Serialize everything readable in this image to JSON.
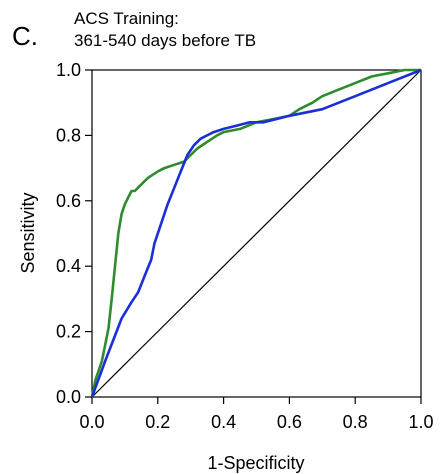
{
  "panel_label": "C.",
  "title_line1": "ACS Training:",
  "title_line2": "361-540 days before TB",
  "chart_data": {
    "type": "line",
    "xlabel": "1-Specificity",
    "ylabel": "Sensitivity",
    "xlim": [
      0.0,
      1.0
    ],
    "ylim": [
      0.0,
      1.0
    ],
    "x_ticks": [
      "0.0",
      "0.2",
      "0.4",
      "0.6",
      "0.8",
      "1.0"
    ],
    "y_ticks": [
      "0.0",
      "0.2",
      "0.4",
      "0.6",
      "0.8",
      "1.0"
    ],
    "grid": false,
    "series": [
      {
        "color": "#2e8b2e",
        "x": [
          0.0,
          0.01,
          0.02,
          0.03,
          0.04,
          0.05,
          0.06,
          0.07,
          0.08,
          0.09,
          0.1,
          0.11,
          0.12,
          0.13,
          0.14,
          0.15,
          0.17,
          0.2,
          0.22,
          0.25,
          0.28,
          0.3,
          0.32,
          0.35,
          0.38,
          0.4,
          0.45,
          0.5,
          0.55,
          0.6,
          0.63,
          0.67,
          0.7,
          0.75,
          0.8,
          0.85,
          0.9,
          0.95,
          1.0
        ],
        "y": [
          0.0,
          0.05,
          0.08,
          0.11,
          0.16,
          0.21,
          0.3,
          0.4,
          0.5,
          0.56,
          0.59,
          0.61,
          0.63,
          0.63,
          0.64,
          0.65,
          0.67,
          0.69,
          0.7,
          0.71,
          0.72,
          0.74,
          0.76,
          0.78,
          0.8,
          0.81,
          0.82,
          0.84,
          0.85,
          0.86,
          0.88,
          0.9,
          0.92,
          0.94,
          0.96,
          0.98,
          0.99,
          1.0,
          1.0
        ]
      },
      {
        "color": "#1a2fd6",
        "x": [
          0.0,
          0.04,
          0.09,
          0.12,
          0.14,
          0.16,
          0.18,
          0.19,
          0.21,
          0.23,
          0.25,
          0.27,
          0.29,
          0.31,
          0.33,
          0.35,
          0.37,
          0.4,
          0.44,
          0.48,
          0.52,
          0.56,
          0.6,
          0.7,
          0.8,
          0.9,
          1.0
        ],
        "y": [
          0.0,
          0.11,
          0.24,
          0.29,
          0.32,
          0.37,
          0.42,
          0.47,
          0.53,
          0.59,
          0.64,
          0.69,
          0.74,
          0.77,
          0.79,
          0.8,
          0.81,
          0.82,
          0.83,
          0.84,
          0.84,
          0.85,
          0.86,
          0.88,
          0.92,
          0.96,
          1.0
        ]
      },
      {
        "color": "#000000",
        "x": [
          0.0,
          1.0
        ],
        "y": [
          0.0,
          1.0
        ]
      }
    ]
  }
}
